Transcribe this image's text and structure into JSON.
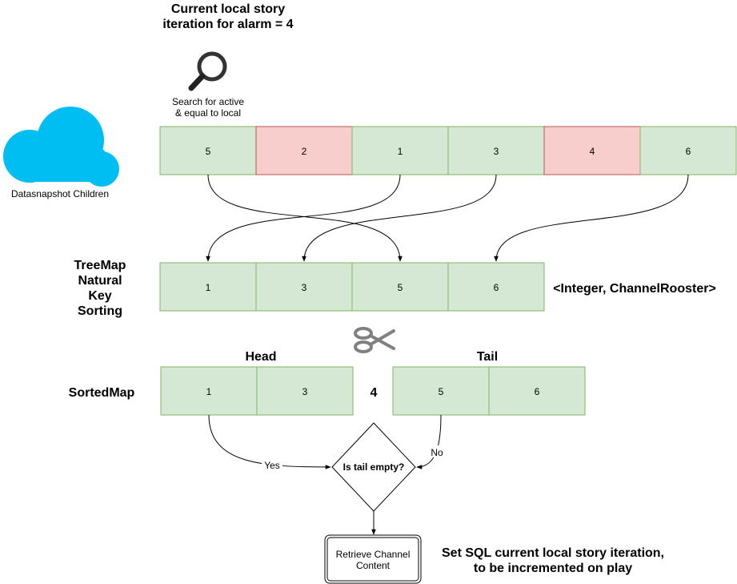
{
  "title_lines": [
    "Current local story",
    "iteration for alarm = 4"
  ],
  "search_caption_lines": [
    "Search for active",
    "& equal to local"
  ],
  "cloud_label": "Datasnapshot Children",
  "children_row": [
    {
      "value": "5",
      "state": "match"
    },
    {
      "value": "2",
      "state": "inactive"
    },
    {
      "value": "1",
      "state": "match"
    },
    {
      "value": "3",
      "state": "match"
    },
    {
      "value": "4",
      "state": "inactive"
    },
    {
      "value": "6",
      "state": "match"
    }
  ],
  "treemap_label_lines": [
    "TreeMap",
    "Natural",
    "Key",
    "Sorting"
  ],
  "treemap_row": [
    "1",
    "3",
    "5",
    "6"
  ],
  "treemap_type": "<Integer, ChannelRooster>",
  "sortedmap_label": "SortedMap",
  "head_label": "Head",
  "tail_label": "Tail",
  "head_row": [
    "1",
    "3"
  ],
  "split_key": "4",
  "tail_row": [
    "5",
    "6"
  ],
  "decision_text": "Is tail empty?",
  "yes_label": "Yes",
  "no_label": "No",
  "retrieve_lines": [
    "Retrieve Channel",
    "Content"
  ],
  "set_sql_lines": [
    "Set SQL current local story iteration,",
    "to be incremented on play"
  ],
  "colors": {
    "green_fill": "#d5e8d4",
    "green_stroke": "#82b366",
    "red_fill": "#f8cecc",
    "red_stroke": "#b85450",
    "cloud": "#00bef2",
    "scissors": "#808080"
  },
  "icons": [
    "cloud-icon",
    "magnifier-icon",
    "scissors-icon"
  ]
}
